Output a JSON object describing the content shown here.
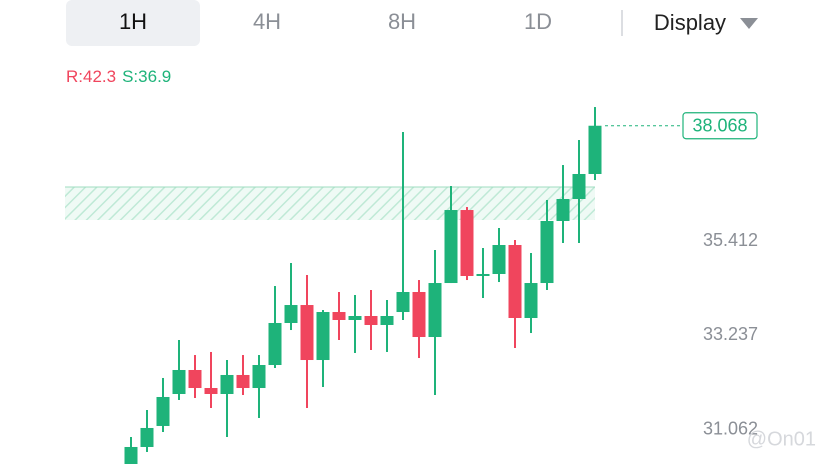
{
  "tabs": [
    "1H",
    "4H",
    "8H",
    "1D"
  ],
  "selected_tab": "1H",
  "display": "Display",
  "indicator": {
    "r": "R:42.3",
    "s": "S:36.9"
  },
  "watermark": "@On01",
  "chart_data": {
    "type": "candlestick",
    "up_color": "#1eb37a",
    "down_color": "#f0455d",
    "ylim": [
      30.274,
      38.661
    ],
    "yticks": [
      31.062,
      33.237,
      35.412
    ],
    "last_price": 38.068,
    "zone": [
      35.896,
      36.656
    ],
    "open": [
      30.274,
      30.666,
      31.15,
      31.887,
      32.44,
      32.025,
      31.887,
      32.325,
      32.025,
      32.555,
      33.523,
      33.937,
      32.67,
      33.776,
      33.592,
      33.684,
      33.477,
      33.776,
      34.237,
      33.2,
      34.444,
      36.126,
      34.606,
      34.652,
      35.32,
      33.638,
      34.444,
      35.873,
      36.38,
      36.956
    ],
    "high": [
      30.896,
      31.518,
      32.256,
      33.131,
      32.785,
      32.855,
      32.67,
      32.785,
      32.785,
      34.375,
      34.905,
      34.629,
      33.822,
      34.237,
      34.168,
      34.283,
      34.053,
      37.923,
      34.513,
      35.205,
      36.679,
      36.195,
      35.251,
      35.712,
      35.435,
      35.136,
      36.357,
      37.163,
      37.739,
      38.499
    ],
    "low": [
      30.274,
      30.551,
      31.011,
      31.749,
      31.795,
      31.564,
      30.896,
      31.864,
      31.334,
      32.486,
      33.361,
      31.564,
      32.048,
      33.131,
      32.832,
      32.901,
      32.855,
      33.592,
      32.716,
      31.864,
      34.444,
      34.513,
      34.099,
      34.467,
      32.947,
      33.292,
      34.283,
      35.366,
      35.366,
      36.817
    ],
    "close": [
      30.666,
      31.104,
      31.818,
      32.44,
      32.025,
      31.887,
      32.325,
      32.025,
      32.555,
      33.523,
      33.937,
      32.67,
      33.776,
      33.592,
      33.684,
      33.477,
      33.684,
      34.237,
      33.2,
      34.444,
      36.126,
      34.606,
      34.652,
      35.32,
      33.638,
      34.444,
      35.873,
      36.38,
      36.956,
      38.068
    ]
  }
}
